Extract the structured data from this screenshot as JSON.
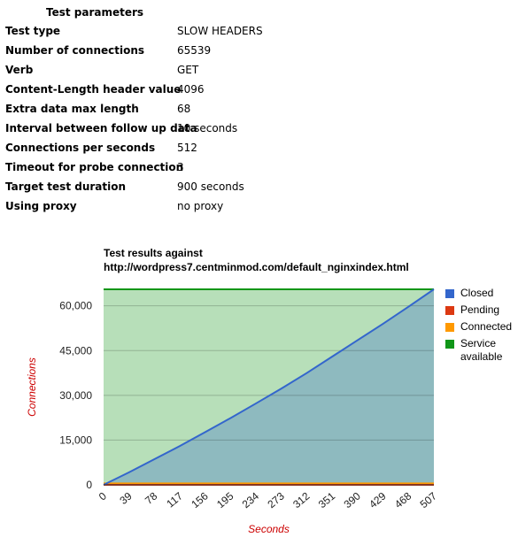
{
  "table": {
    "title": "Test parameters",
    "rows": [
      [
        "Test type",
        "SLOW HEADERS"
      ],
      [
        "Number of connections",
        "65539"
      ],
      [
        "Verb",
        "GET"
      ],
      [
        "Content-Length header value",
        "4096"
      ],
      [
        "Extra data max length",
        "68"
      ],
      [
        "Interval between follow up data",
        "10 seconds"
      ],
      [
        "Connections per seconds",
        "512"
      ],
      [
        "Timeout for probe connection",
        "3"
      ],
      [
        "Target test duration",
        "900 seconds"
      ],
      [
        "Using proxy",
        "no proxy"
      ]
    ]
  },
  "chart_data": {
    "type": "area",
    "title": "Test results against",
    "subtitle": "http://wordpress7.centminmod.com/default_nginxindex.html",
    "x_label": "Seconds",
    "y_label": "Connections",
    "x": [
      0,
      39,
      78,
      117,
      156,
      195,
      234,
      273,
      312,
      351,
      390,
      429,
      468,
      507
    ],
    "series": [
      {
        "name": "Closed",
        "color": "#3366cc",
        "values": [
          0,
          4200,
          8600,
          13000,
          17700,
          22400,
          27300,
          32300,
          37500,
          43000,
          48500,
          54000,
          59700,
          65539
        ]
      },
      {
        "name": "Pending",
        "color": "#dc3912",
        "values": [
          0,
          0,
          0,
          0,
          0,
          0,
          0,
          0,
          0,
          0,
          0,
          0,
          0,
          0
        ]
      },
      {
        "name": "Connected",
        "color": "#ff9900",
        "values": [
          500,
          500,
          500,
          500,
          500,
          500,
          500,
          500,
          500,
          500,
          500,
          500,
          500,
          500
        ]
      },
      {
        "name": "Service available",
        "color": "#109618",
        "values": [
          65539,
          65539,
          65539,
          65539,
          65539,
          65539,
          65539,
          65539,
          65539,
          65539,
          65539,
          65539,
          65539,
          65539
        ]
      }
    ],
    "xlim": [
      0,
      507
    ],
    "xticks": [
      0,
      39,
      78,
      117,
      156,
      195,
      234,
      273,
      312,
      351,
      390,
      429,
      468,
      507
    ],
    "ylim": [
      0,
      65539
    ],
    "yticks": [
      0,
      {
        "value": 15000,
        "label": "15,000"
      },
      {
        "value": 30000,
        "label": "30,000"
      },
      {
        "value": 45000,
        "label": "45,000"
      },
      {
        "value": 60000,
        "label": "60,000"
      }
    ],
    "grid": true
  }
}
